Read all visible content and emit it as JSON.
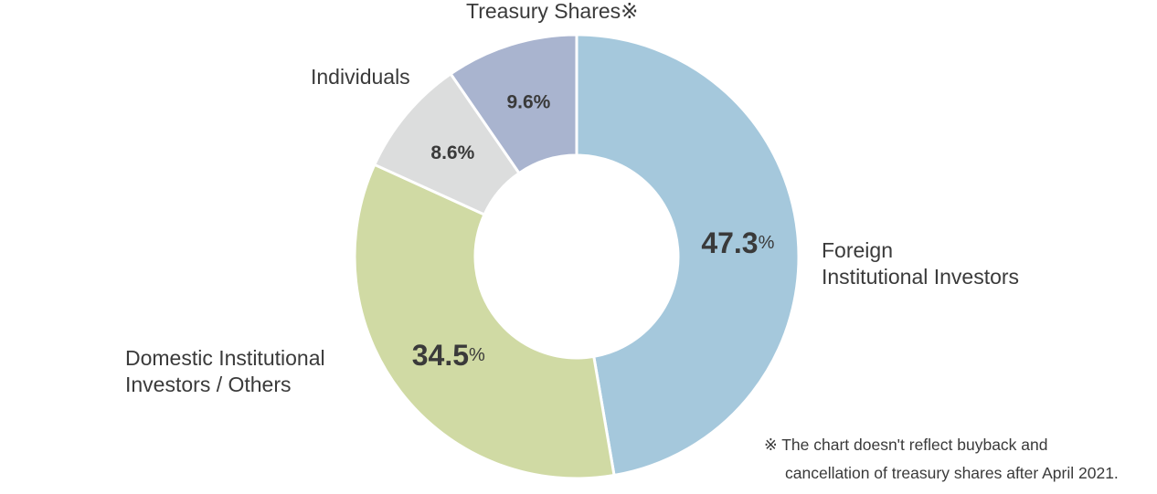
{
  "chart_data": {
    "type": "pie",
    "variant": "donut",
    "start_angle_deg": 0,
    "direction": "clockwise",
    "slices": [
      {
        "name": "Foreign Institutional Investors",
        "label_lines": [
          "Foreign",
          "Institutional Investors"
        ],
        "value": 47.3,
        "color": "#a5c8dc",
        "pct_text": "47.3",
        "pct_unit": "%",
        "emphasis": true
      },
      {
        "name": "Domestic Institutional Investors / Others",
        "label_lines": [
          "Domestic Institutional",
          "Investors / Others"
        ],
        "value": 34.5,
        "color": "#d0daa4",
        "pct_text": "34.5",
        "pct_unit": "%",
        "emphasis": true
      },
      {
        "name": "Individuals",
        "label_lines": [
          "Individuals"
        ],
        "value": 8.6,
        "color": "#dcdddd",
        "pct_text": "8.6%",
        "pct_unit": "",
        "emphasis": false
      },
      {
        "name": "Treasury Shares",
        "label_lines": [
          "Treasury Shares※"
        ],
        "value": 9.6,
        "color": "#a9b4cf",
        "pct_text": "9.6%",
        "pct_unit": "",
        "emphasis": false
      }
    ]
  },
  "footnote": {
    "line1": "※ The chart doesn't reflect buyback and",
    "line2": "cancellation of treasury shares after April 2021."
  }
}
